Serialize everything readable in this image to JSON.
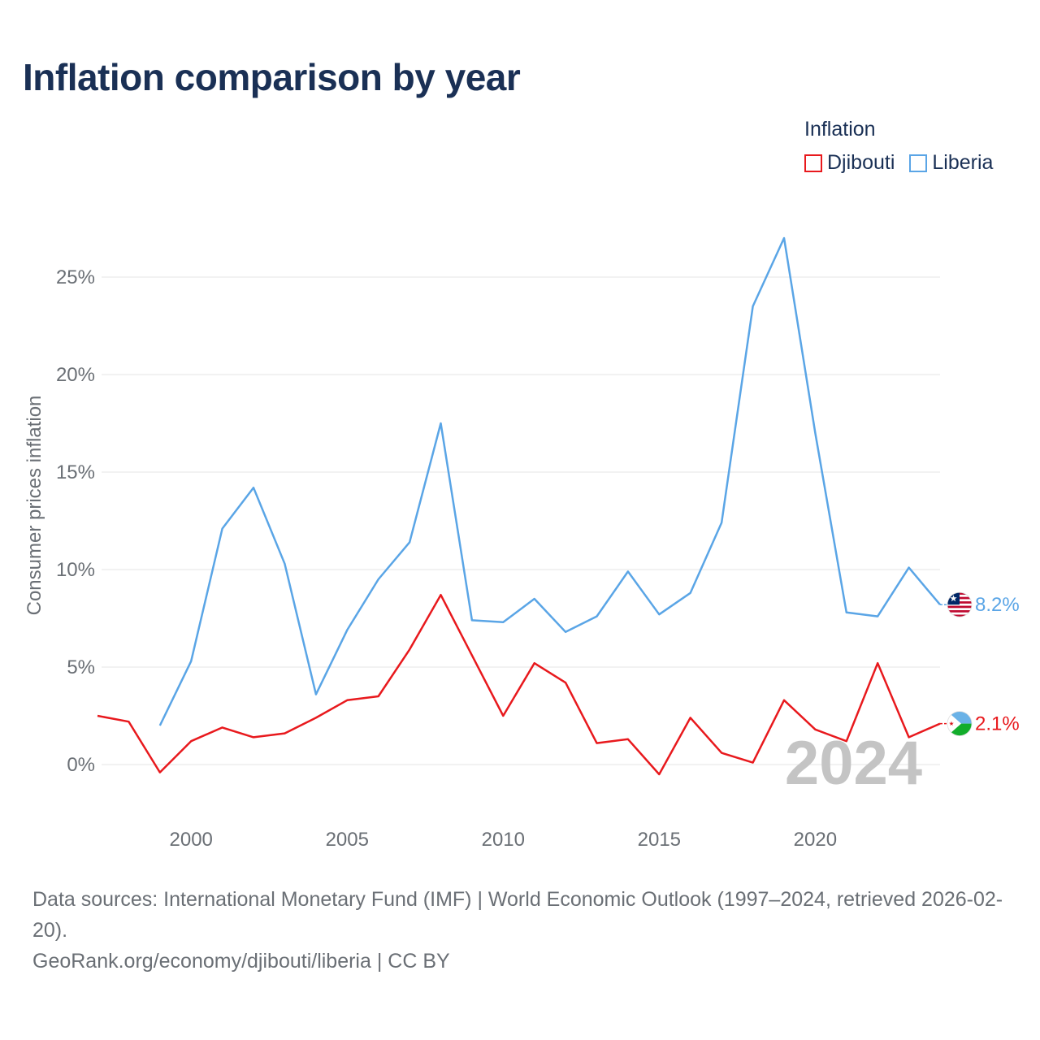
{
  "title": "Inflation comparison by year",
  "legend": {
    "title": "Inflation",
    "items": [
      {
        "label": "Djibouti",
        "color": "#e8191d"
      },
      {
        "label": "Liberia",
        "color": "#5aa5e6"
      }
    ]
  },
  "footer": {
    "sources": "Data sources: International Monetary Fund (IMF) | World Economic Outlook (1997–2024, retrieved 2026-02-20).",
    "credit": "GeoRank.org/economy/djibouti/liberia | CC BY"
  },
  "chart_data": {
    "type": "line",
    "ylabel": "Consumer prices inflation",
    "xlabel": "",
    "xlim": [
      1997,
      2024
    ],
    "ylim": [
      -3,
      28
    ],
    "yticks": [
      0,
      5,
      10,
      15,
      20,
      25
    ],
    "ytick_labels": [
      "0%",
      "5%",
      "10%",
      "15%",
      "20%",
      "25%"
    ],
    "xticks": [
      2000,
      2005,
      2010,
      2015,
      2020
    ],
    "xtick_labels": [
      "2000",
      "2005",
      "2010",
      "2015",
      "2020"
    ],
    "year_watermark": "2024",
    "series": [
      {
        "name": "Djibouti",
        "color": "#e8191d",
        "end_label": "2.1%",
        "flag": "djibouti-flag-icon",
        "x": [
          1997,
          1998,
          1999,
          2000,
          2001,
          2002,
          2003,
          2004,
          2005,
          2006,
          2007,
          2008,
          2009,
          2010,
          2011,
          2012,
          2013,
          2014,
          2015,
          2016,
          2017,
          2018,
          2019,
          2020,
          2021,
          2022,
          2023,
          2024
        ],
        "values": [
          2.5,
          2.2,
          -0.4,
          1.2,
          1.9,
          1.4,
          1.6,
          2.4,
          3.3,
          3.5,
          5.9,
          8.7,
          5.6,
          2.5,
          5.2,
          4.2,
          1.1,
          1.3,
          -0.5,
          2.4,
          0.6,
          0.1,
          3.3,
          1.8,
          1.2,
          5.2,
          1.4,
          2.1
        ]
      },
      {
        "name": "Liberia",
        "color": "#5aa5e6",
        "end_label": "8.2%",
        "flag": "liberia-flag-icon",
        "x": [
          1999,
          2000,
          2001,
          2002,
          2003,
          2004,
          2005,
          2006,
          2007,
          2008,
          2009,
          2010,
          2011,
          2012,
          2013,
          2014,
          2015,
          2016,
          2017,
          2018,
          2019,
          2020,
          2021,
          2022,
          2023,
          2024
        ],
        "values": [
          2.0,
          5.3,
          12.1,
          14.2,
          10.3,
          3.6,
          6.9,
          9.5,
          11.4,
          17.5,
          7.4,
          7.3,
          8.5,
          6.8,
          7.6,
          9.9,
          7.7,
          8.8,
          12.4,
          23.5,
          27.0,
          17.0,
          7.8,
          7.6,
          10.1,
          8.2
        ]
      }
    ]
  }
}
